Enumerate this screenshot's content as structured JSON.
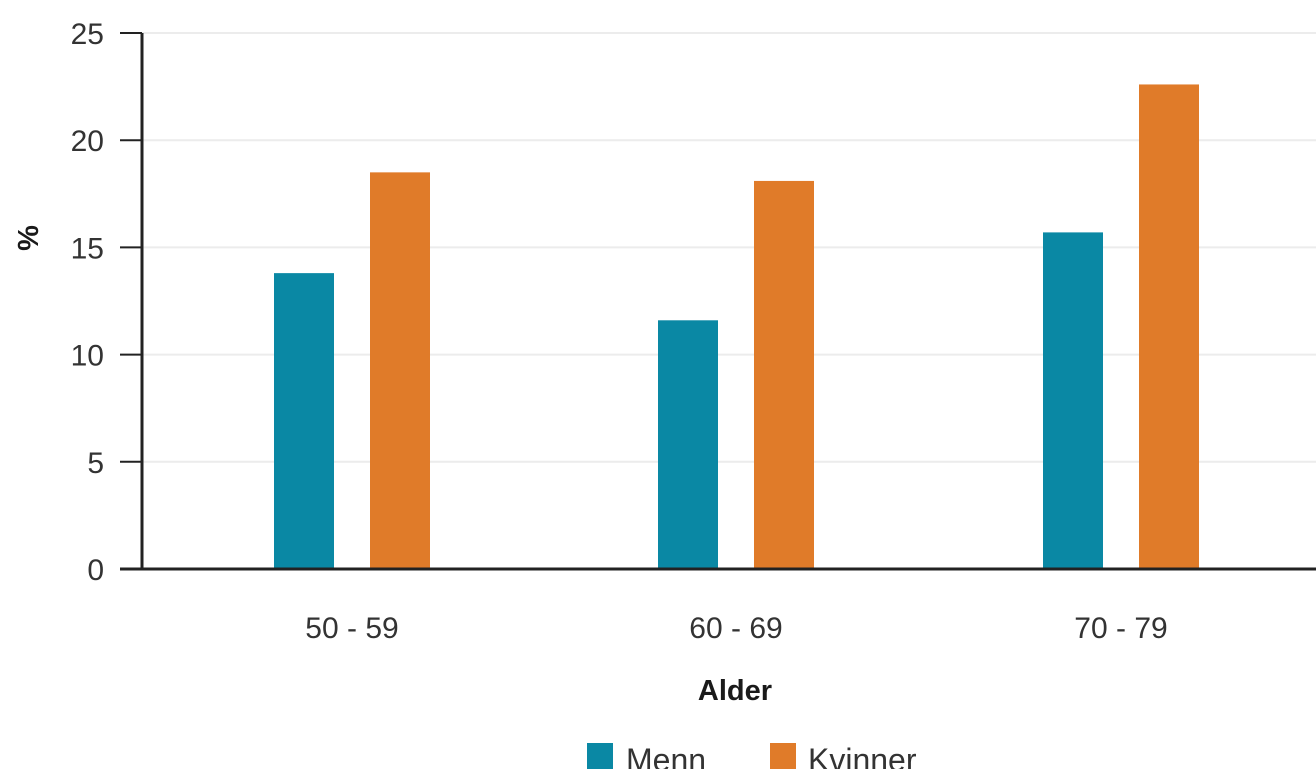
{
  "chart_data": {
    "type": "bar",
    "title": "",
    "xlabel": "Alder",
    "ylabel": "%",
    "categories": [
      "50 - 59",
      "60 - 69",
      "70 - 79"
    ],
    "series": [
      {
        "name": "Menn",
        "color": "#0a88a4",
        "values": [
          13.8,
          11.6,
          15.7
        ]
      },
      {
        "name": "Kvinner",
        "color": "#e07b29",
        "values": [
          18.5,
          18.1,
          22.6
        ]
      }
    ],
    "ylim": [
      0,
      25
    ],
    "yticks": [
      "0",
      "5",
      "10",
      "15",
      "20",
      "25"
    ],
    "grid": true,
    "legend_position": "bottom-center"
  }
}
